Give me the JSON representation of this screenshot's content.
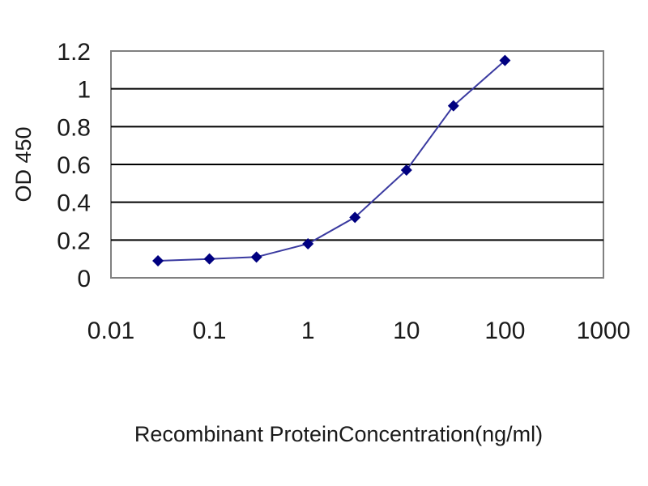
{
  "chart_data": {
    "type": "line",
    "title": "",
    "xlabel": "Recombinant ProteinConcentration(ng/ml)",
    "ylabel": "OD 450",
    "x_scale": "log",
    "xlim": [
      0.01,
      1000
    ],
    "ylim": [
      0,
      1.2
    ],
    "x_tick_labels": [
      "0.01",
      "0.1",
      "1",
      "10",
      "100",
      "1000"
    ],
    "x_tick_values": [
      0.01,
      0.1,
      1,
      10,
      100,
      1000
    ],
    "y_tick_labels": [
      "0",
      "0.2",
      "0.4",
      "0.6",
      "0.8",
      "1",
      "1.2"
    ],
    "y_tick_values": [
      0,
      0.2,
      0.4,
      0.6,
      0.8,
      1,
      1.2
    ],
    "grid": "horizontal",
    "legend": "none",
    "series": [
      {
        "x": [
          0.03,
          0.1,
          0.3,
          1,
          3,
          10,
          30,
          100
        ],
        "y": [
          0.09,
          0.1,
          0.11,
          0.18,
          0.32,
          0.57,
          0.91,
          1.15
        ],
        "color": "#000080",
        "marker": "diamond"
      }
    ]
  }
}
